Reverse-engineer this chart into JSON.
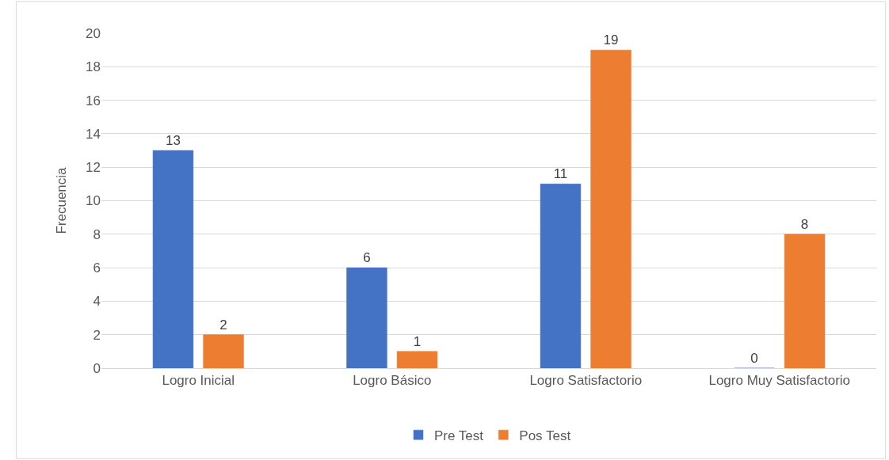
{
  "chart_data": {
    "type": "bar",
    "ylabel": "Frecuencia",
    "categories": [
      "Logro Inicial",
      "Logro Básico",
      "Logro Satisfactorio",
      "Logro Muy Satisfactorio"
    ],
    "series": [
      {
        "name": "Pre Test",
        "color": "#4472c4",
        "values": [
          13,
          6,
          11,
          0
        ]
      },
      {
        "name": "Pos Test",
        "color": "#ed7d31",
        "values": [
          2,
          1,
          19,
          8
        ]
      }
    ],
    "ylim": [
      0,
      20
    ],
    "yticks": [
      0,
      2,
      4,
      6,
      8,
      10,
      12,
      14,
      16,
      18,
      20
    ],
    "grid": "y",
    "legend": "bottom",
    "data_labels": true
  }
}
